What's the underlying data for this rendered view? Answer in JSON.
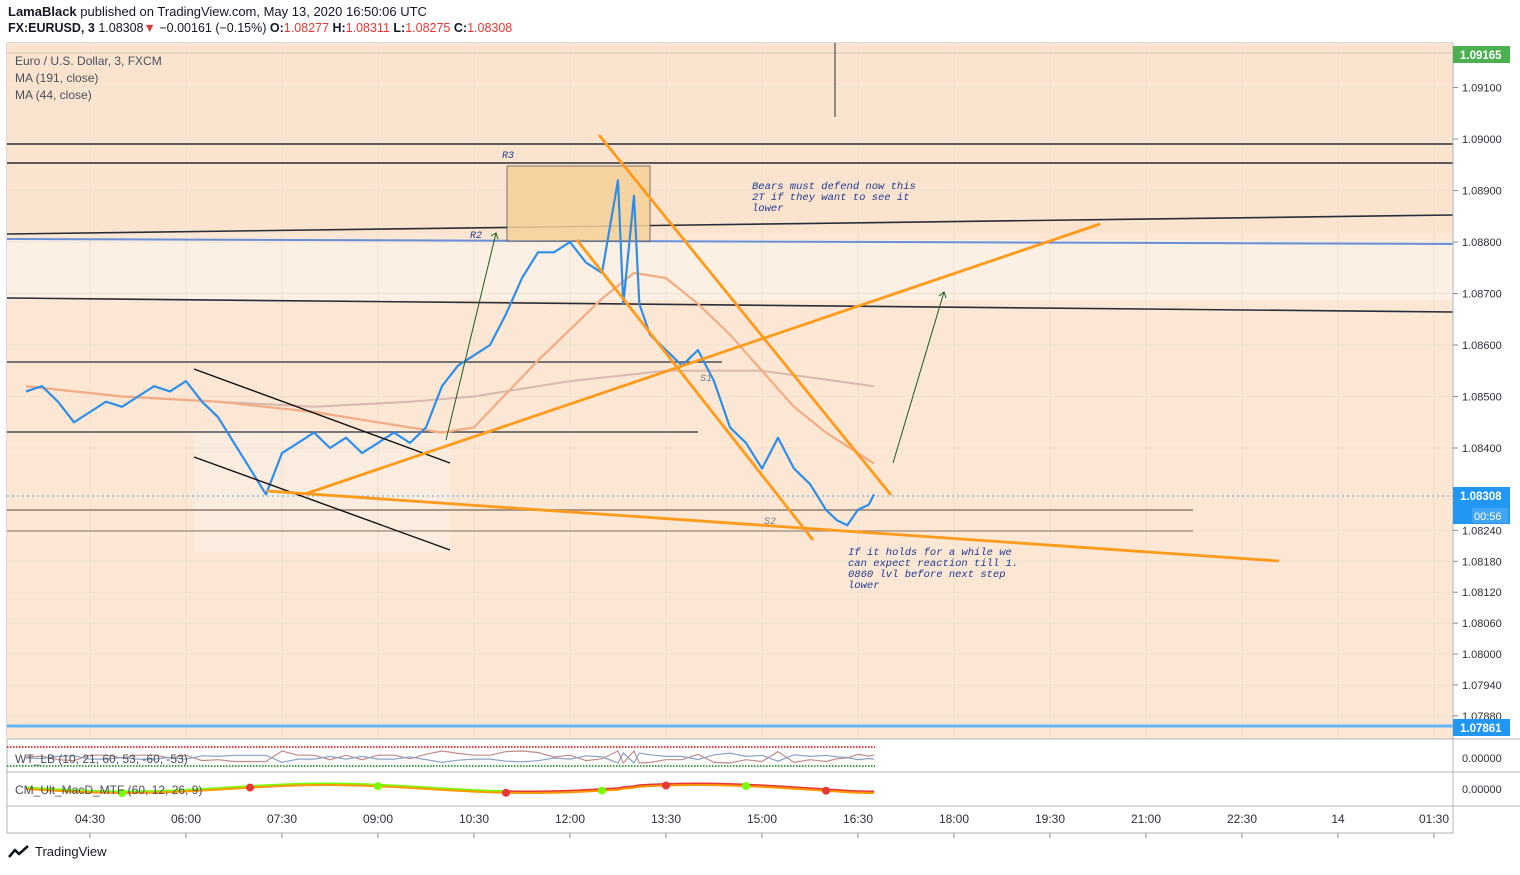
{
  "header": {
    "author": "LamaBlack",
    "published_text": "published on TradingView.com, May 13, 2020 16:50:06 UTC",
    "symbol": "FX:EURUSD, 3",
    "last": "1.08308",
    "change": "−0.00161 (−0.15%)",
    "o_label": "O:",
    "o": "1.08277",
    "h_label": "H:",
    "h": "1.08311",
    "l_label": "L:",
    "l": "1.08275",
    "c_label": "C:",
    "c": "1.08308"
  },
  "legend": {
    "title": "Euro / U.S. Dollar, 3, FXCM",
    "ma1": "MA (191, close)",
    "ma2": "MA (44, close)"
  },
  "indicators": {
    "wt": "WT_LB (10, 21, 60, 53, -60, -53)",
    "macd": "CM_Ult_MacD_MTF (60, 12, 26, 9)",
    "wt_value": "0.00000",
    "macd_value": "0.00000"
  },
  "price_badges": {
    "top": "1.09165",
    "current": "1.08308",
    "countdown": "00:56",
    "bottom": "1.07861"
  },
  "colors": {
    "price_line": "#2f8ee8",
    "ma191": "#d9b8b0",
    "ma44": "#f3ac82",
    "orange": "#ff9a1a",
    "bg": "#fbe7d3",
    "green_badge": "#4caf50",
    "blue_badge": "#2196f3"
  },
  "annotations": {
    "r3": "R3",
    "r2": "R2",
    "s1": "S1",
    "s2": "S2",
    "note1": [
      "Bears must defend now this",
      "2T if they want to see it",
      "lower"
    ],
    "note2": [
      "If it holds for a while we",
      "can expect reaction till 1.",
      "0860 lvl before next step",
      "lower"
    ]
  },
  "footer": {
    "brand": "TradingView"
  },
  "chart_data": {
    "type": "line",
    "title": "Euro / U.S. Dollar, 3, FXCM",
    "xlabel": "",
    "ylabel": "",
    "x_ticks": [
      "04:30",
      "06:00",
      "07:30",
      "09:00",
      "10:30",
      "12:00",
      "13:30",
      "15:00",
      "16:30",
      "18:00",
      "19:30",
      "21:00",
      "22:30",
      "14",
      "01:30"
    ],
    "y_ticks": [
      1.091,
      1.09,
      1.089,
      1.088,
      1.087,
      1.086,
      1.085,
      1.084,
      1.0824,
      1.0818,
      1.0812,
      1.0806,
      1.08,
      1.0794,
      1.0788
    ],
    "y_tick_labels": [
      "1.09100",
      "1.09000",
      "1.08900",
      "1.08800",
      "1.08700",
      "1.08600",
      "1.08500",
      "1.08400",
      "1.08240",
      "1.08180",
      "1.08120",
      "1.08060",
      "1.08000",
      "1.07940",
      "1.07880"
    ],
    "ylim": [
      1.0785,
      1.0921
    ],
    "grid": true,
    "series": [
      {
        "name": "EURUSD",
        "x": [
          "03:30",
          "03:45",
          "04:00",
          "04:15",
          "04:30",
          "04:45",
          "05:00",
          "05:15",
          "05:30",
          "05:45",
          "06:00",
          "06:15",
          "06:30",
          "06:45",
          "07:00",
          "07:15",
          "07:30",
          "07:45",
          "08:00",
          "08:15",
          "08:30",
          "08:45",
          "09:00",
          "09:15",
          "09:30",
          "09:45",
          "10:00",
          "10:15",
          "10:30",
          "10:45",
          "11:00",
          "11:15",
          "11:30",
          "11:45",
          "12:00",
          "12:15",
          "12:30",
          "12:45",
          "12:50",
          "13:00",
          "13:05",
          "13:15",
          "13:30",
          "13:45",
          "14:00",
          "14:15",
          "14:30",
          "14:45",
          "15:00",
          "15:15",
          "15:30",
          "15:45",
          "16:00",
          "16:10",
          "16:20",
          "16:30",
          "16:40",
          "16:45"
        ],
        "y": [
          1.0851,
          1.0852,
          1.0849,
          1.0845,
          1.0847,
          1.0849,
          1.0848,
          1.085,
          1.0852,
          1.0851,
          1.0853,
          1.0849,
          1.0846,
          1.0841,
          1.0836,
          1.0831,
          1.0839,
          1.0841,
          1.0843,
          1.084,
          1.0842,
          1.0839,
          1.0841,
          1.0843,
          1.0841,
          1.0844,
          1.0852,
          1.0856,
          1.0858,
          1.086,
          1.0866,
          1.0873,
          1.0878,
          1.0878,
          1.088,
          1.0876,
          1.0874,
          1.0892,
          1.0868,
          1.0889,
          1.0868,
          1.0862,
          1.0859,
          1.0856,
          1.0859,
          1.0853,
          1.0844,
          1.0841,
          1.0836,
          1.0842,
          1.0836,
          1.0833,
          1.0828,
          1.0826,
          1.0825,
          1.0828,
          1.0829,
          1.0831
        ]
      },
      {
        "name": "MA (191, close)",
        "x": [
          "03:30",
          "05:00",
          "06:30",
          "08:00",
          "09:30",
          "10:30",
          "12:00",
          "13:30",
          "15:00",
          "16:45"
        ],
        "y": [
          1.0852,
          1.085,
          1.0849,
          1.0848,
          1.0849,
          1.085,
          1.0853,
          1.0855,
          1.0855,
          1.0852
        ]
      },
      {
        "name": "MA (44, close)",
        "x": [
          "03:30",
          "05:00",
          "06:30",
          "08:00",
          "09:00",
          "10:00",
          "10:30",
          "11:30",
          "12:30",
          "13:00",
          "13:30",
          "14:00",
          "14:30",
          "15:00",
          "15:30",
          "16:00",
          "16:45"
        ],
        "y": [
          1.0852,
          1.085,
          1.0849,
          1.0847,
          1.0845,
          1.0843,
          1.0844,
          1.0857,
          1.0869,
          1.0874,
          1.0873,
          1.0868,
          1.0862,
          1.0855,
          1.0848,
          1.0843,
          1.0837
        ]
      }
    ]
  }
}
